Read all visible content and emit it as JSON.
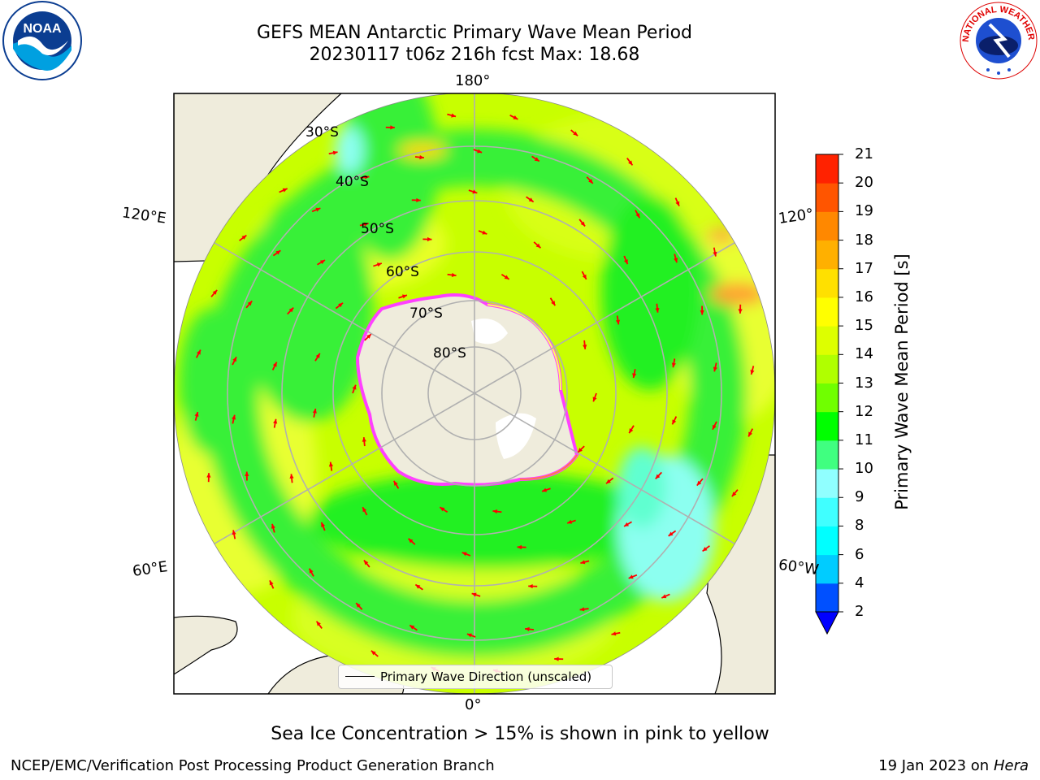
{
  "title": {
    "line1": "GEFS MEAN Antarctic Primary Wave Mean Period",
    "line2": "20230117 t06z 216h fcst   Max: 18.68"
  },
  "map": {
    "projection": "south-polar-stereographic",
    "longitude_labels": {
      "top": "180°",
      "bottom": "0°",
      "left_upper": "120°E",
      "left_lower": "60°E",
      "right_upper": "120°",
      "right_lower": "60°W"
    },
    "latitude_labels": [
      "30°S",
      "40°S",
      "50°S",
      "60°S",
      "70°S",
      "80°S"
    ],
    "legend": "Primary Wave Direction (unscaled)",
    "colors": {
      "land": "#efecdc",
      "ocean_green": "#38f038",
      "ocean_lime": "#c8ff00",
      "ocean_yellow": "#e8ff28",
      "ocean_aqua": "#8cfff0",
      "arrow": "#ff0000",
      "graticule": "#b0b0b0",
      "sea_ice_low": "#ff40ff",
      "sea_ice_high": "#ffff60"
    }
  },
  "colorbar": {
    "label": "Primary Wave Mean Period [s]",
    "ticks": [
      "2",
      "4",
      "6",
      "8",
      "9",
      "10",
      "11",
      "12",
      "13",
      "14",
      "15",
      "16",
      "17",
      "18",
      "19",
      "20",
      "21"
    ],
    "colors": [
      "#0050ff",
      "#00ccff",
      "#00ffff",
      "#40ffff",
      "#90ffff",
      "#40ff80",
      "#00ff00",
      "#70ff00",
      "#b0ff00",
      "#ddff00",
      "#ffff00",
      "#ffe000",
      "#ffb000",
      "#ff8800",
      "#ff5500",
      "#ff2200"
    ],
    "extend_color": "#0000ff"
  },
  "logos": {
    "left_text": "NOAA",
    "right_text": "NATIONAL WEATHER SERVICE"
  },
  "footer": {
    "note": "Sea Ice Concentration > 15% is shown in pink to yellow",
    "left": "NCEP/EMC/Verification Post Processing Product Generation Branch",
    "right_date": "19 Jan 2023 on ",
    "right_machine": "Hera"
  }
}
